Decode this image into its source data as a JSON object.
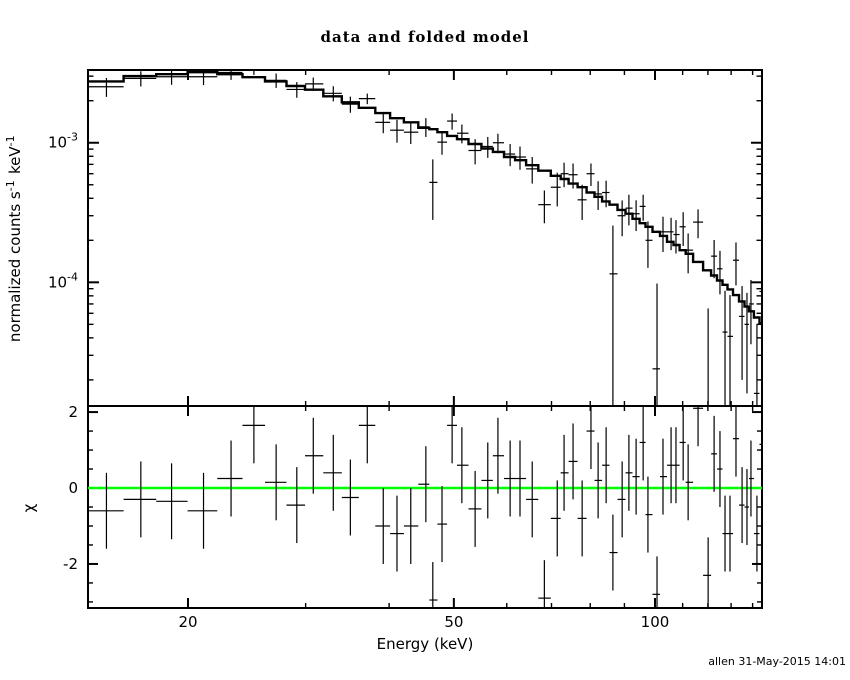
{
  "title": "data and folded model",
  "footer": "allen 31-May-2015 14:01",
  "colors": {
    "foreground": "#000000",
    "background": "#ffffff",
    "zero_line": "#00ff00"
  },
  "chart_data": [
    {
      "type": "scatter",
      "name": "spectrum-panel",
      "title": "data and folded model",
      "xlabel": "Energy (keV)",
      "ylabel": "normalized counts s^-1 keV^-1",
      "xscale": "log",
      "yscale": "log",
      "xlim": [
        14.17,
        144.6
      ],
      "ylim": [
        1.3e-05,
        0.00332
      ],
      "legend": "none",
      "grid": false,
      "x_major_ticks": [
        20,
        50,
        100
      ],
      "x_major_tick_labels": [
        "20",
        "50",
        "100"
      ],
      "x_minor_ticks": [
        30,
        40,
        60,
        70,
        80,
        90,
        110,
        120,
        130,
        140
      ],
      "y_major_ticks": [
        0.001,
        0.0001
      ],
      "y_major_tick_labels": [
        {
          "mantissa": "10",
          "exponent": "-3"
        },
        {
          "mantissa": "10",
          "exponent": "-4"
        }
      ],
      "x": [
        15.1,
        17.0,
        18.9,
        21.1,
        23.2,
        25.1,
        27.1,
        29.1,
        30.8,
        33.0,
        35.0,
        37.1,
        39.2,
        41.1,
        43.1,
        45.4,
        46.5,
        48.0,
        49.7,
        51.4,
        53.8,
        56.2,
        58.2,
        60.7,
        62.8,
        65.5,
        68.3,
        71.4,
        73.1,
        75.4,
        77.8,
        80.2,
        82.2,
        84.5,
        86.5,
        89.3,
        91.4,
        93.7,
        96.0,
        97.6,
        100.7,
        102.8,
        105.7,
        107.5,
        110.2,
        112.1,
        116.0,
        120.1,
        122.6,
        125.1,
        127.3,
        129.5,
        132.2,
        135.0,
        137.3,
        139.2,
        142.1,
        144.6
      ],
      "data": [
        0.00252,
        0.00289,
        0.00297,
        0.00297,
        0.00319,
        0.0033,
        0.0028,
        0.00241,
        0.00264,
        0.00226,
        0.00189,
        0.00207,
        0.0014,
        0.00123,
        0.00119,
        0.0013,
        0.00052,
        0.00101,
        0.00143,
        0.00117,
        0.00088,
        0.00094,
        0.001,
        0.00083,
        0.00079,
        0.00065,
        0.00036,
        0.00048,
        0.0006,
        0.00059,
        0.00039,
        0.0006,
        0.00043,
        0.00044,
        0.000115,
        0.0003,
        0.00034,
        0.00031,
        0.00035,
        0.0002,
        2.4e-05,
        0.00023,
        0.00023,
        0.00022,
        0.00025,
        0.00017,
        0.00027,
        1e-05,
        0.000154,
        0.000125,
        4.4e-05,
        4.1e-05,
        0.000144,
        5.7e-05,
        5e-05,
        7e-05,
        1.6e-05,
        8.6e-05
      ],
      "data_err": [
        0.00039,
        0.00036,
        0.00037,
        0.00038,
        0.00037,
        0.00024,
        0.00033,
        0.00031,
        0.00029,
        0.00028,
        0.00025,
        0.00018,
        0.00023,
        0.00023,
        0.00021,
        0.0002,
        0.00024,
        0.00019,
        0.00019,
        0.00018,
        0.00018,
        0.00016,
        0.00016,
        0.00015,
        0.00015,
        0.00014,
        9.5e-05,
        0.00013,
        0.00012,
        0.00012,
        0.00011,
        0.00011,
        0.0001,
        9.5e-05,
        0.00014,
        8.6e-05,
        8.4e-05,
        7.7e-05,
        7.4e-05,
        7.3e-05,
        7.4e-05,
        6.5e-05,
        6e-05,
        5.9e-05,
        6.8e-05,
        5.4e-05,
        6.3e-05,
        5.5e-05,
        4.7e-05,
        4.3e-05,
        4.3e-05,
        4e-05,
        4.9e-05,
        3.7e-05,
        3.4e-05,
        3.4e-05,
        3.4e-05,
        3.1e-05
      ],
      "model": [
        0.00275,
        0.003,
        0.0031,
        0.0032,
        0.0031,
        0.00295,
        0.00275,
        0.00255,
        0.0024,
        0.00215,
        0.00195,
        0.00178,
        0.00163,
        0.0015,
        0.0014,
        0.00128,
        0.00125,
        0.00119,
        0.00112,
        0.00106,
        0.00098,
        0.00091,
        0.00086,
        0.00079,
        0.00075,
        0.00069,
        0.00063,
        0.00058,
        0.00055,
        0.00051,
        0.00048,
        0.00044,
        0.00041,
        0.00038,
        0.00036,
        0.00033,
        0.00031,
        0.000285,
        0.000265,
        0.00025,
        0.00023,
        0.000215,
        0.000195,
        0.000185,
        0.00017,
        0.00016,
        0.00014,
        0.000122,
        0.000112,
        0.000103,
        9.6e-05,
        8.9e-05,
        8.1e-05,
        7.3e-05,
        6.7e-05,
        6.2e-05,
        5.6e-05,
        5.1e-05
      ]
    },
    {
      "type": "scatter",
      "name": "residuals-panel",
      "xlabel": "Energy (keV)",
      "ylabel": "χ",
      "xscale": "log",
      "yscale": "linear",
      "xlim": [
        14.17,
        144.6
      ],
      "ylim": [
        -3.16,
        2.16
      ],
      "grid": false,
      "y_major_ticks": [
        2,
        0,
        -2
      ],
      "y_major_tick_labels": [
        "2",
        "0",
        "-2"
      ],
      "y_minor_ticks": [
        1.5,
        1,
        0.5,
        -0.5,
        -1,
        -1.5,
        -2.5,
        -3
      ],
      "zero_line": {
        "value": 0,
        "color": "#00ff00"
      },
      "chi": [
        -0.6,
        -0.3,
        -0.35,
        -0.6,
        0.25,
        1.65,
        0.15,
        -0.45,
        0.85,
        0.4,
        -0.25,
        1.65,
        -1.0,
        -1.2,
        -1.0,
        0.1,
        -2.95,
        -0.95,
        1.65,
        0.6,
        -0.55,
        0.2,
        0.85,
        0.25,
        0.25,
        -0.3,
        -2.9,
        -0.8,
        0.4,
        0.7,
        -0.8,
        1.5,
        0.2,
        0.6,
        -1.7,
        -0.3,
        0.4,
        0.3,
        1.2,
        -0.7,
        -2.8,
        0.3,
        0.6,
        0.6,
        1.2,
        0.15,
        2.1,
        -2.3,
        0.9,
        0.5,
        -1.2,
        -1.2,
        1.3,
        -0.45,
        -0.5,
        0.25,
        -1.2,
        1.15
      ],
      "chi_err": 1.0
    }
  ]
}
